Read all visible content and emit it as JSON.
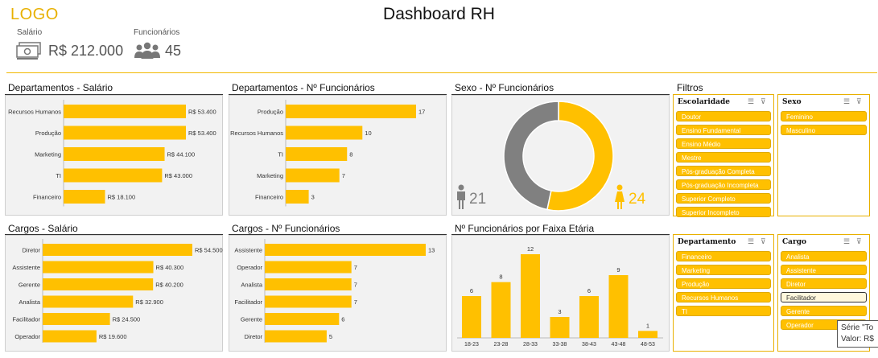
{
  "header": {
    "logo": "LOGO",
    "title": "Dashboard RH"
  },
  "kpis": {
    "salary_label": "Salário",
    "salary_value": "R$ 212.000",
    "employees_label": "Funcionários",
    "employees_value": "45"
  },
  "panels": {
    "dept_salary": "Departamentos - Salário",
    "dept_count": "Departamentos - Nº Funcionários",
    "gender": "Sexo - Nº Funcionários",
    "role_salary": "Cargos - Salário",
    "role_count": "Cargos - Nº Funcionários",
    "age": "Nº Funcionários por Faixa Etária"
  },
  "gender": {
    "male": "21",
    "female": "24",
    "colors": {
      "male": "#808080",
      "female": "#ffc000"
    }
  },
  "chart_data": [
    {
      "id": "dept_salary",
      "type": "bar",
      "orientation": "horizontal",
      "categories": [
        "Recursos Humanos",
        "Produção",
        "Marketing",
        "TI",
        "Financeiro"
      ],
      "values": [
        53400,
        53400,
        44100,
        43000,
        18100
      ],
      "labels": [
        "R$ 53.400",
        "R$ 53.400",
        "R$ 44.100",
        "R$ 43.000",
        "R$ 18.100"
      ]
    },
    {
      "id": "dept_count",
      "type": "bar",
      "orientation": "horizontal",
      "categories": [
        "Produção",
        "Recursos Humanos",
        "TI",
        "Marketing",
        "Financeiro"
      ],
      "values": [
        17,
        10,
        8,
        7,
        3
      ],
      "labels": [
        "17",
        "10",
        "8",
        "7",
        "3"
      ]
    },
    {
      "id": "gender",
      "type": "pie",
      "categories": [
        "Masculino",
        "Feminino"
      ],
      "values": [
        21,
        24
      ]
    },
    {
      "id": "role_salary",
      "type": "bar",
      "orientation": "horizontal",
      "categories": [
        "Diretor",
        "Assistente",
        "Gerente",
        "Analista",
        "Facilitador",
        "Operador"
      ],
      "values": [
        54500,
        40300,
        40200,
        32900,
        24500,
        19600
      ],
      "labels": [
        "R$ 54.500",
        "R$ 40.300",
        "R$ 40.200",
        "R$ 32.900",
        "R$ 24.500",
        "R$ 19.600"
      ]
    },
    {
      "id": "role_count",
      "type": "bar",
      "orientation": "horizontal",
      "categories": [
        "Assistente",
        "Operador",
        "Analista",
        "Facilitador",
        "Gerente",
        "Diretor"
      ],
      "values": [
        13,
        7,
        7,
        7,
        6,
        5
      ],
      "labels": [
        "13",
        "7",
        "7",
        "7",
        "6",
        "5"
      ]
    },
    {
      "id": "age",
      "type": "bar",
      "orientation": "vertical",
      "categories": [
        "18-23",
        "23-28",
        "28-33",
        "33-38",
        "38-43",
        "43-48",
        "48-53"
      ],
      "values": [
        6,
        8,
        12,
        3,
        6,
        9,
        1
      ],
      "labels": [
        "6",
        "8",
        "12",
        "3",
        "6",
        "9",
        "1"
      ]
    }
  ],
  "filters": {
    "title": "Filtros",
    "escolaridade": {
      "title": "Escolaridade",
      "items": [
        "Doutor",
        "Ensino Fundamental",
        "Ensino Médio",
        "Mestre",
        "Pós-graduação Completa",
        "Pós-graduação Incompleta",
        "Superior Completo",
        "Superior Incompleto"
      ]
    },
    "sexo": {
      "title": "Sexo",
      "items": [
        "Feminino",
        "Masculino"
      ]
    },
    "departamento": {
      "title": "Departamento",
      "items": [
        "Financeiro",
        "Marketing",
        "Produção",
        "Recursos Humanos",
        "TI"
      ]
    },
    "cargo": {
      "title": "Cargo",
      "items": [
        "Analista",
        "Assistente",
        "Diretor",
        "Facilitador",
        "Gerente",
        "Operador"
      ],
      "selected": "Facilitador"
    }
  },
  "tooltip": {
    "line1": "Série \"To",
    "line2": "Valor: R$"
  },
  "colors": {
    "accent": "#ffc000",
    "panel_bg": "#f2f2f2",
    "gray": "#808080"
  }
}
